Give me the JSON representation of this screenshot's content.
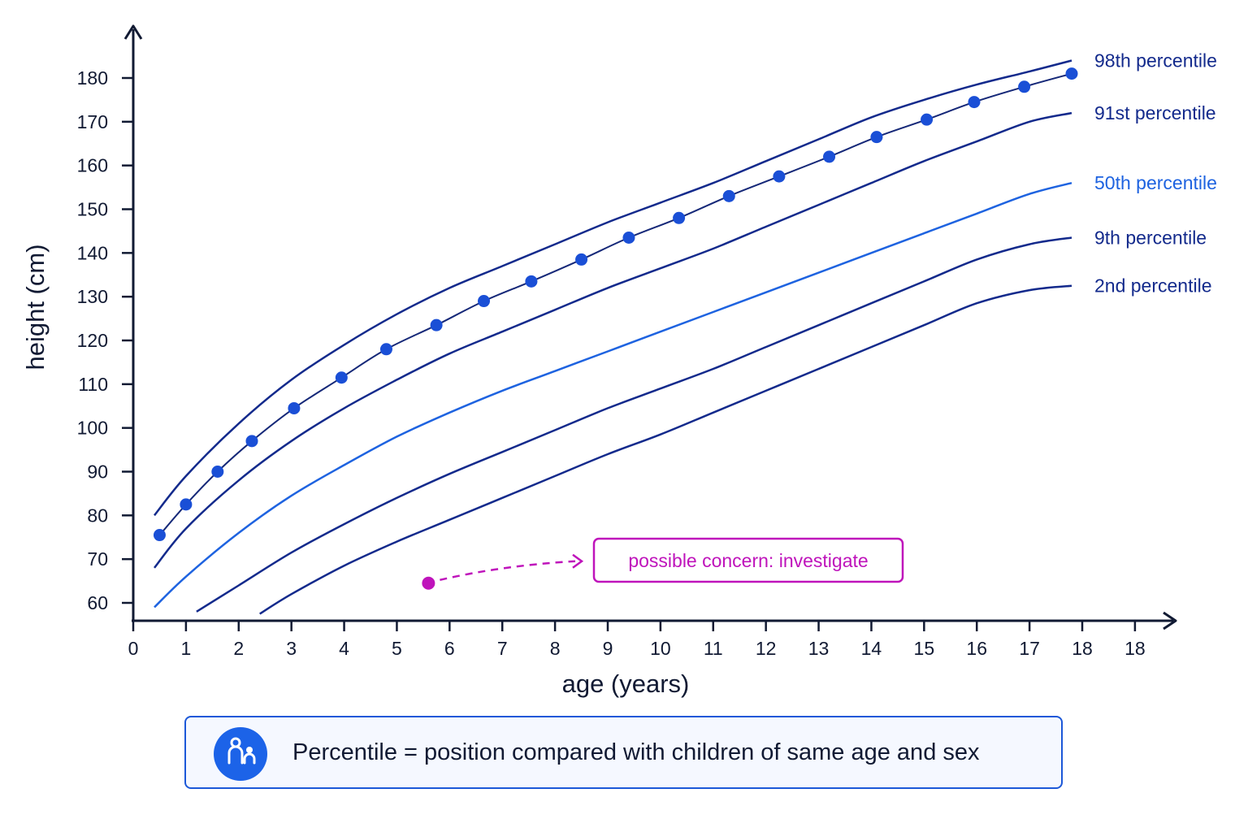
{
  "chart_data": {
    "type": "line",
    "xlabel": "age (years)",
    "ylabel": "height (cm)",
    "xlim": [
      0,
      19.3
    ],
    "ylim": [
      56,
      187
    ],
    "x_ticks": [
      "0",
      "1",
      "2",
      "3",
      "4",
      "5",
      "6",
      "7",
      "8",
      "9",
      "10",
      "11",
      "12",
      "13",
      "14",
      "15",
      "16",
      "17",
      "18",
      "18"
    ],
    "y_ticks": [
      60,
      70,
      80,
      90,
      100,
      110,
      120,
      130,
      140,
      150,
      160,
      170,
      180
    ],
    "grid": false,
    "series": [
      {
        "name": "98th percentile",
        "color": "#132a8c",
        "x": [
          0.4,
          1,
          2,
          3,
          4,
          5,
          6,
          7,
          8,
          9,
          10,
          11,
          12,
          13,
          14,
          15,
          16,
          17,
          17.8
        ],
        "y": [
          80,
          89,
          101,
          111,
          119,
          126,
          132,
          137,
          142,
          147,
          151.5,
          156,
          161,
          166,
          171,
          175,
          178.5,
          181.5,
          184
        ]
      },
      {
        "name": "91st percentile",
        "color": "#132a8c",
        "x": [
          0.4,
          1,
          2,
          3,
          4,
          5,
          6,
          7,
          8,
          9,
          10,
          11,
          12,
          13,
          14,
          15,
          16,
          17,
          17.8
        ],
        "y": [
          68,
          77,
          88,
          97,
          104.5,
          111,
          117,
          122,
          127,
          132,
          136.5,
          141,
          146,
          151,
          156,
          161,
          165.5,
          170,
          172
        ]
      },
      {
        "name": "50th percentile",
        "color": "#1e63e0",
        "x": [
          0.4,
          1,
          2,
          3,
          4,
          5,
          6,
          7,
          8,
          9,
          10,
          11,
          12,
          13,
          14,
          15,
          16,
          17,
          17.8
        ],
        "y": [
          59,
          66,
          76,
          84.5,
          91.5,
          98,
          103.5,
          108.5,
          113,
          117.5,
          122,
          126.5,
          131,
          135.5,
          140,
          144.5,
          149,
          153.5,
          156
        ]
      },
      {
        "name": "9th percentile",
        "color": "#132a8c",
        "x": [
          1.2,
          2,
          3,
          4,
          5,
          6,
          7,
          8,
          9,
          10,
          11,
          12,
          13,
          14,
          15,
          16,
          17,
          17.8
        ],
        "y": [
          58,
          64,
          71.5,
          78,
          84,
          89.5,
          94.5,
          99.5,
          104.5,
          109,
          113.5,
          118.5,
          123.5,
          128.5,
          133.5,
          138.5,
          142,
          143.5
        ]
      },
      {
        "name": "2nd percentile",
        "color": "#132a8c",
        "x": [
          2.4,
          3,
          4,
          5,
          6,
          7,
          8,
          9,
          10,
          11,
          12,
          13,
          14,
          15,
          16,
          17,
          17.8
        ],
        "y": [
          57.5,
          62,
          68.5,
          74,
          79,
          84,
          89,
          94,
          98.5,
          103.5,
          108.5,
          113.5,
          118.5,
          123.5,
          128.5,
          131.5,
          132.5
        ]
      },
      {
        "name": "",
        "color": "#1a4fd6",
        "points": true,
        "x": [
          0.5,
          1,
          1.6,
          2.25,
          3.05,
          3.95,
          4.8,
          5.75,
          6.65,
          7.55,
          8.5,
          9.4,
          10.35,
          11.3,
          12.25,
          13.2,
          14.1,
          15.05,
          15.95,
          16.9,
          17.8
        ],
        "y": [
          75.5,
          82.5,
          90,
          97,
          104.5,
          111.5,
          118,
          123.5,
          129,
          133.5,
          138.5,
          143.5,
          148,
          153,
          157.5,
          162,
          166.5,
          170.5,
          174.5,
          178,
          181
        ]
      }
    ],
    "annotations": [
      {
        "text": "possible concern: investigate",
        "color": "#bf14bb",
        "point_x": 5.6,
        "point_y": 64.5
      }
    ]
  },
  "info": {
    "icon": "people-icon",
    "text": "Percentile = position compared with children of same age and sex"
  }
}
